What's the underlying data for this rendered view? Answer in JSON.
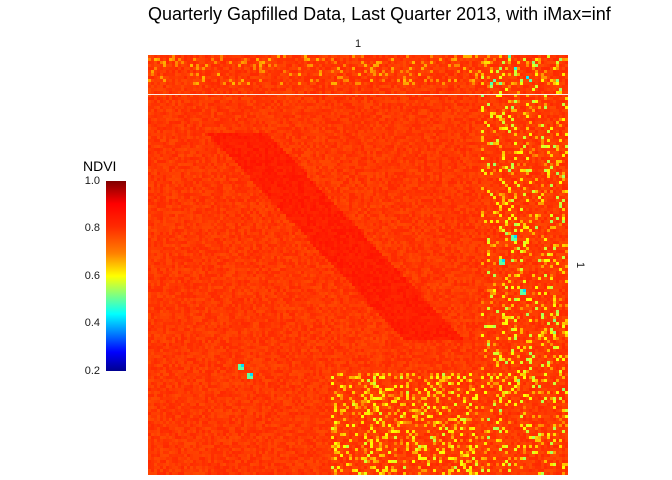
{
  "title": "Quarterly Gapfilled Data, Last Quarter 2013, with iMax=inf",
  "facet_strips": {
    "top": "1",
    "right": "1"
  },
  "legend": {
    "title": "NDVI",
    "ticks": [
      "1.0",
      "0.8",
      "0.6",
      "0.4",
      "0.2"
    ],
    "range": [
      0.2,
      1.0
    ],
    "colormap": [
      "#00008f",
      "#0000ff",
      "#0080ff",
      "#00ffff",
      "#80ff80",
      "#ffff00",
      "#ff8000",
      "#ff2a00",
      "#ff0000",
      "#800000"
    ]
  },
  "chart_data": {
    "type": "heatmap",
    "variable": "NDVI",
    "value_range": [
      0.2,
      1.0
    ],
    "typical_value": 0.9,
    "dominant_color": "#ff3d00",
    "low_value_color": "#0000ff",
    "high_value_color": "#800000",
    "grid": false,
    "legend_position": "left"
  }
}
